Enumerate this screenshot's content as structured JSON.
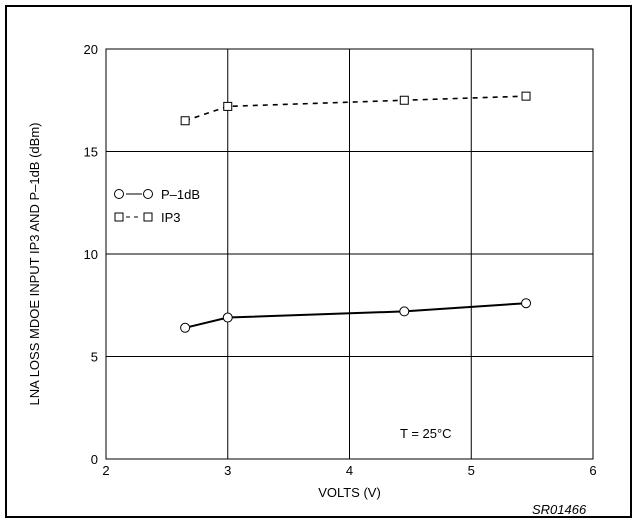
{
  "chart_data": {
    "type": "line",
    "xlabel": "VOLTS (V)",
    "ylabel": "LNA LOSS MDOE INPUT IP3 AND P–1dB (dBm)",
    "xlim": [
      2,
      6
    ],
    "ylim": [
      0,
      20
    ],
    "xticks": [
      "2",
      "3",
      "4",
      "5",
      "6"
    ],
    "yticks": [
      "0",
      "5",
      "10",
      "15",
      "20"
    ],
    "grid": true,
    "legend_position": "left",
    "series": [
      {
        "name": "IP3",
        "style": "dashed",
        "marker": "square",
        "x": [
          2.65,
          3.0,
          4.45,
          5.45
        ],
        "y": [
          16.5,
          17.2,
          17.5,
          17.7
        ]
      },
      {
        "name": "P–1dB",
        "style": "solid",
        "marker": "circle",
        "x": [
          2.65,
          3.0,
          4.45,
          5.45
        ],
        "y": [
          6.4,
          6.9,
          7.2,
          7.6
        ]
      }
    ],
    "annotations": {
      "temperature": "T = 25°C",
      "figure_code": "SR01466"
    }
  }
}
